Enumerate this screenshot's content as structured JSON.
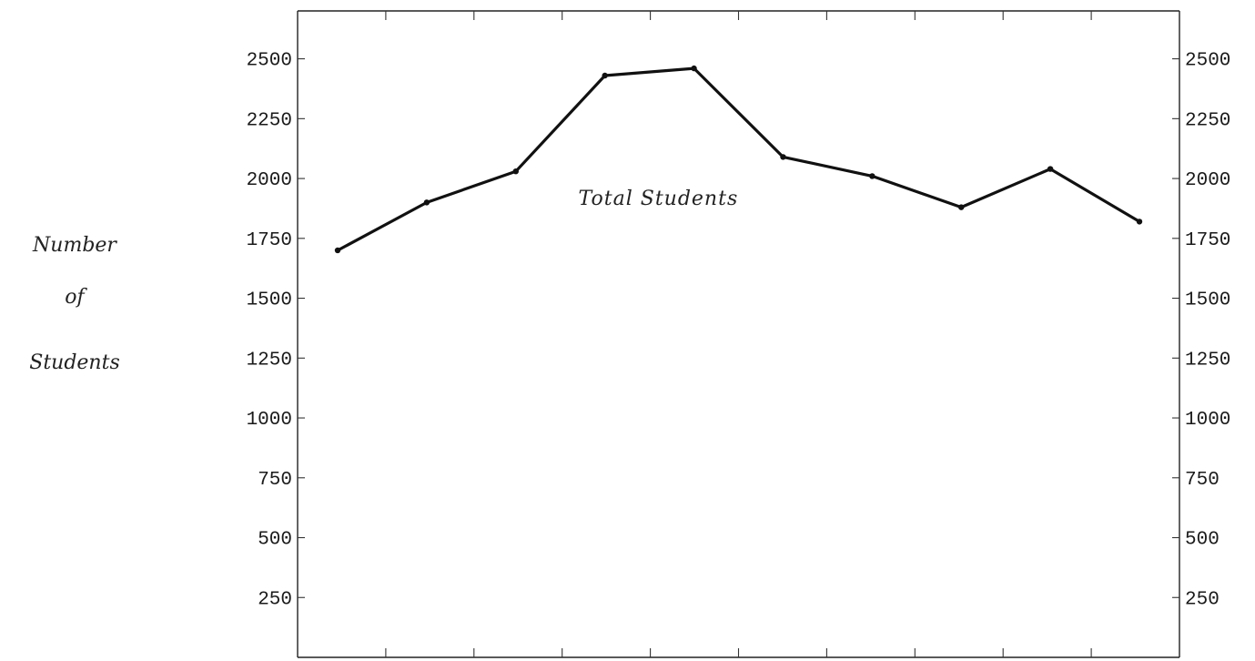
{
  "chart_data": {
    "type": "line",
    "title": "",
    "xlabel": "",
    "ylabel_lines": [
      "Number",
      "of",
      "Students"
    ],
    "ylim": [
      0,
      2700
    ],
    "yticks": [
      250,
      500,
      750,
      1000,
      1250,
      1500,
      1750,
      2000,
      2250,
      2500
    ],
    "x_count": 10,
    "x_tick_count": 9,
    "annotation": {
      "text": "Total Students",
      "x_index": 3.6,
      "y": 1890
    },
    "series": [
      {
        "values": [
          1700,
          1900,
          2030,
          2430,
          2460,
          2090,
          2010,
          1880,
          2040,
          1820
        ]
      }
    ],
    "grid": false,
    "colors": {
      "line": "#111111",
      "frame": "#222222"
    }
  }
}
